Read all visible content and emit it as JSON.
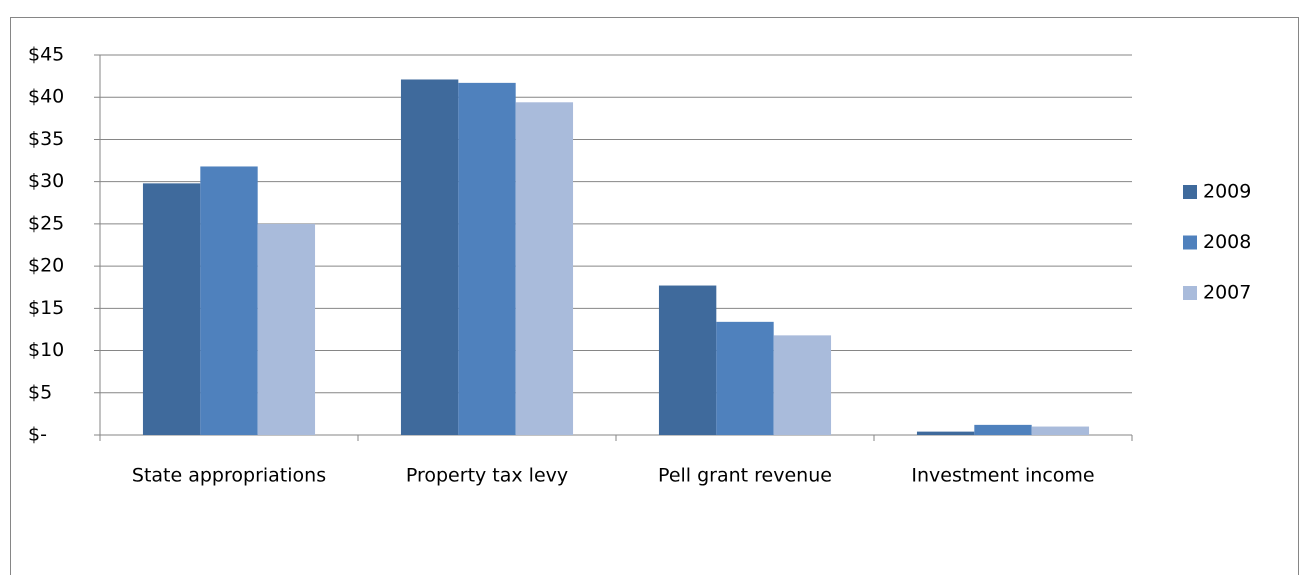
{
  "chart_data": {
    "type": "bar",
    "categories": [
      "State appropriations",
      "Property tax levy",
      "Pell grant revenue",
      "Investment income"
    ],
    "series": [
      {
        "name": "2009",
        "color": "#3f6a9c",
        "values": [
          29.8,
          42.1,
          17.7,
          0.4
        ]
      },
      {
        "name": "2008",
        "color": "#4f81bd",
        "values": [
          31.8,
          41.7,
          13.4,
          1.2
        ]
      },
      {
        "name": "2007",
        "color": "#a9bbdb",
        "values": [
          25.0,
          39.4,
          11.8,
          1.0
        ]
      }
    ],
    "ylim": [
      0,
      45
    ],
    "yticks": [
      {
        "value": 0,
        "label": "$-"
      },
      {
        "value": 5,
        "label": "$5"
      },
      {
        "value": 10,
        "label": "$10"
      },
      {
        "value": 15,
        "label": "$15"
      },
      {
        "value": 20,
        "label": "$20"
      },
      {
        "value": 25,
        "label": "$25"
      },
      {
        "value": 30,
        "label": "$30"
      },
      {
        "value": 35,
        "label": "$35"
      },
      {
        "value": 40,
        "label": "$40"
      },
      {
        "value": 45,
        "label": "$45"
      }
    ],
    "grid": true,
    "legend": "right"
  }
}
